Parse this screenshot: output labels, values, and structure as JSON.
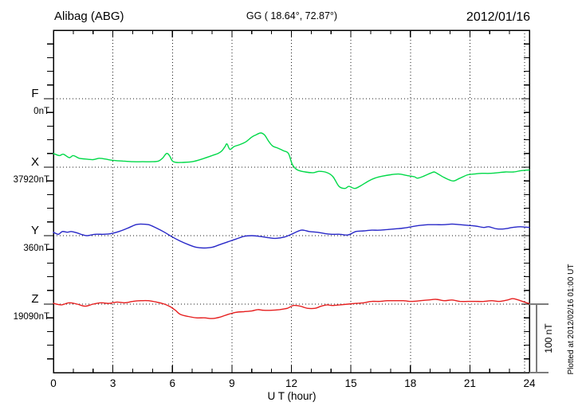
{
  "header": {
    "station": "Alibag (ABG)",
    "coordinates": "GG ( 18.64°,  72.87°)",
    "date": "2012/01/16"
  },
  "side_notes": {
    "scale_bar_label": "100 nT",
    "plotted_at": "Plotted at 2012/02/16 01:00 UT"
  },
  "chart_data": {
    "type": "line",
    "title": "Alibag (ABG) magnetogram for 2012/01/16",
    "xlabel": "U T (hour)",
    "x_range": [
      0,
      24
    ],
    "x_major_ticks": [
      0,
      3,
      6,
      9,
      12,
      15,
      18,
      21,
      24
    ],
    "x_tick_labels": [
      "0",
      "3",
      "6",
      "9",
      "12",
      "15",
      "18",
      "21",
      "24"
    ],
    "x_minor_tick_step_hours": 1,
    "x_grid_hours": [
      3,
      6,
      9,
      12,
      15,
      18,
      21,
      24
    ],
    "grid": "dotted",
    "tick_nT": 20,
    "scale_bar_nT": 100,
    "units": "nT",
    "series": [
      {
        "name": "F",
        "color": "#FFA500",
        "base_label": "0nT",
        "base_value": 0,
        "points": []
      },
      {
        "name": "X",
        "color": "#00D948",
        "base_label": "37920nT",
        "base_value": 37920,
        "points": [
          [
            0,
            20
          ],
          [
            0.3,
            17
          ],
          [
            0.5,
            19
          ],
          [
            0.8,
            14
          ],
          [
            1.0,
            17
          ],
          [
            1.3,
            13
          ],
          [
            1.6,
            12
          ],
          [
            2.0,
            11
          ],
          [
            2.3,
            13
          ],
          [
            2.6,
            12
          ],
          [
            3.0,
            10
          ],
          [
            3.5,
            9
          ],
          [
            4.0,
            8
          ],
          [
            4.5,
            8
          ],
          [
            5.0,
            8
          ],
          [
            5.3,
            9
          ],
          [
            5.5,
            13
          ],
          [
            5.7,
            20
          ],
          [
            5.85,
            17
          ],
          [
            6.0,
            9
          ],
          [
            6.2,
            7
          ],
          [
            6.5,
            7
          ],
          [
            7.0,
            8
          ],
          [
            7.5,
            12
          ],
          [
            8.0,
            17
          ],
          [
            8.3,
            20
          ],
          [
            8.5,
            24
          ],
          [
            8.65,
            30
          ],
          [
            8.75,
            34
          ],
          [
            8.9,
            26
          ],
          [
            9.1,
            30
          ],
          [
            9.4,
            33
          ],
          [
            9.7,
            37
          ],
          [
            10.0,
            44
          ],
          [
            10.2,
            47
          ],
          [
            10.45,
            50
          ],
          [
            10.65,
            47
          ],
          [
            10.85,
            38
          ],
          [
            11.05,
            31
          ],
          [
            11.3,
            28
          ],
          [
            11.6,
            24
          ],
          [
            11.85,
            20
          ],
          [
            12.05,
            4
          ],
          [
            12.3,
            -4
          ],
          [
            12.7,
            -7
          ],
          [
            13.1,
            -8
          ],
          [
            13.4,
            -6
          ],
          [
            13.8,
            -8
          ],
          [
            14.1,
            -14
          ],
          [
            14.4,
            -28
          ],
          [
            14.7,
            -31
          ],
          [
            14.9,
            -28
          ],
          [
            15.2,
            -31
          ],
          [
            15.5,
            -27
          ],
          [
            15.9,
            -20
          ],
          [
            16.2,
            -16
          ],
          [
            16.6,
            -13
          ],
          [
            17.0,
            -11
          ],
          [
            17.4,
            -10
          ],
          [
            17.8,
            -12
          ],
          [
            18.2,
            -14
          ],
          [
            18.35,
            -16
          ],
          [
            18.6,
            -14
          ],
          [
            19.0,
            -9
          ],
          [
            19.2,
            -7
          ],
          [
            19.4,
            -10
          ],
          [
            19.7,
            -15
          ],
          [
            20.0,
            -19
          ],
          [
            20.2,
            -20
          ],
          [
            20.5,
            -16
          ],
          [
            20.9,
            -11
          ],
          [
            21.2,
            -10
          ],
          [
            21.6,
            -9
          ],
          [
            22.0,
            -9
          ],
          [
            22.4,
            -8
          ],
          [
            22.8,
            -7
          ],
          [
            23.2,
            -7
          ],
          [
            23.6,
            -5
          ],
          [
            24.0,
            -4
          ]
        ]
      },
      {
        "name": "Y",
        "color": "#2828C8",
        "base_label": "360nT",
        "base_value": 360,
        "points": [
          [
            0,
            5
          ],
          [
            0.25,
            2
          ],
          [
            0.45,
            6
          ],
          [
            0.7,
            5
          ],
          [
            0.9,
            6
          ],
          [
            1.2,
            4
          ],
          [
            1.5,
            1
          ],
          [
            1.7,
            0
          ],
          [
            2.1,
            2
          ],
          [
            2.5,
            2
          ],
          [
            2.9,
            3
          ],
          [
            3.3,
            6
          ],
          [
            3.75,
            11
          ],
          [
            4.15,
            16
          ],
          [
            4.4,
            17
          ],
          [
            4.8,
            16
          ],
          [
            5.2,
            11
          ],
          [
            5.6,
            5
          ],
          [
            6.0,
            -2
          ],
          [
            6.4,
            -8
          ],
          [
            6.8,
            -13
          ],
          [
            7.2,
            -17
          ],
          [
            7.6,
            -18
          ],
          [
            8.0,
            -17
          ],
          [
            8.4,
            -13
          ],
          [
            8.8,
            -9
          ],
          [
            9.2,
            -5
          ],
          [
            9.6,
            -1
          ],
          [
            10.0,
            0
          ],
          [
            10.4,
            -1
          ],
          [
            10.85,
            -3
          ],
          [
            11.2,
            -4
          ],
          [
            11.65,
            -2
          ],
          [
            12.0,
            2
          ],
          [
            12.5,
            8
          ],
          [
            12.9,
            6
          ],
          [
            13.3,
            5
          ],
          [
            13.7,
            3
          ],
          [
            14.05,
            2
          ],
          [
            14.45,
            2
          ],
          [
            14.85,
            1
          ],
          [
            15.25,
            6
          ],
          [
            15.65,
            7
          ],
          [
            16.05,
            8
          ],
          [
            16.45,
            8
          ],
          [
            16.85,
            9
          ],
          [
            17.25,
            10
          ],
          [
            17.65,
            11
          ],
          [
            18.05,
            13
          ],
          [
            18.5,
            15
          ],
          [
            18.9,
            16
          ],
          [
            19.3,
            16
          ],
          [
            19.7,
            16
          ],
          [
            20.1,
            17
          ],
          [
            20.5,
            16
          ],
          [
            20.9,
            15
          ],
          [
            21.3,
            14
          ],
          [
            21.7,
            12
          ],
          [
            21.95,
            13
          ],
          [
            22.35,
            10
          ],
          [
            22.75,
            10
          ],
          [
            23.15,
            12
          ],
          [
            23.55,
            13
          ],
          [
            24.0,
            12
          ]
        ]
      },
      {
        "name": "Z",
        "color": "#E61E1E",
        "base_label": "19090nT",
        "base_value": 19090,
        "points": [
          [
            0,
            1
          ],
          [
            0.4,
            -1
          ],
          [
            0.8,
            2
          ],
          [
            1.2,
            0
          ],
          [
            1.6,
            -3
          ],
          [
            2.0,
            0
          ],
          [
            2.4,
            2
          ],
          [
            2.8,
            1
          ],
          [
            3.2,
            3
          ],
          [
            3.6,
            2
          ],
          [
            4.0,
            4
          ],
          [
            4.4,
            5
          ],
          [
            4.8,
            5
          ],
          [
            5.2,
            3
          ],
          [
            5.6,
            0
          ],
          [
            5.9,
            -4
          ],
          [
            6.15,
            -9
          ],
          [
            6.4,
            -15
          ],
          [
            6.8,
            -18
          ],
          [
            7.2,
            -20
          ],
          [
            7.6,
            -20
          ],
          [
            8.0,
            -21
          ],
          [
            8.4,
            -19
          ],
          [
            8.8,
            -15
          ],
          [
            9.2,
            -12
          ],
          [
            9.6,
            -11
          ],
          [
            10.0,
            -10
          ],
          [
            10.3,
            -8
          ],
          [
            10.6,
            -9
          ],
          [
            11.0,
            -9
          ],
          [
            11.4,
            -8
          ],
          [
            11.8,
            -6
          ],
          [
            12.1,
            -2
          ],
          [
            12.45,
            -3
          ],
          [
            12.8,
            -6
          ],
          [
            13.2,
            -6
          ],
          [
            13.5,
            -3
          ],
          [
            13.8,
            -1
          ],
          [
            14.05,
            -2
          ],
          [
            14.45,
            -1
          ],
          [
            14.85,
            0
          ],
          [
            15.25,
            1
          ],
          [
            15.65,
            2
          ],
          [
            16.05,
            4
          ],
          [
            16.45,
            4
          ],
          [
            16.85,
            5
          ],
          [
            17.25,
            5
          ],
          [
            17.65,
            5
          ],
          [
            18.05,
            4
          ],
          [
            18.5,
            5
          ],
          [
            18.9,
            6
          ],
          [
            19.3,
            7
          ],
          [
            19.7,
            5
          ],
          [
            20.1,
            6
          ],
          [
            20.5,
            4
          ],
          [
            20.9,
            4
          ],
          [
            21.3,
            4
          ],
          [
            21.7,
            4
          ],
          [
            22.1,
            5
          ],
          [
            22.5,
            4
          ],
          [
            22.9,
            6
          ],
          [
            23.15,
            8
          ],
          [
            23.45,
            6
          ],
          [
            23.85,
            2
          ],
          [
            24.0,
            1
          ]
        ]
      }
    ]
  }
}
